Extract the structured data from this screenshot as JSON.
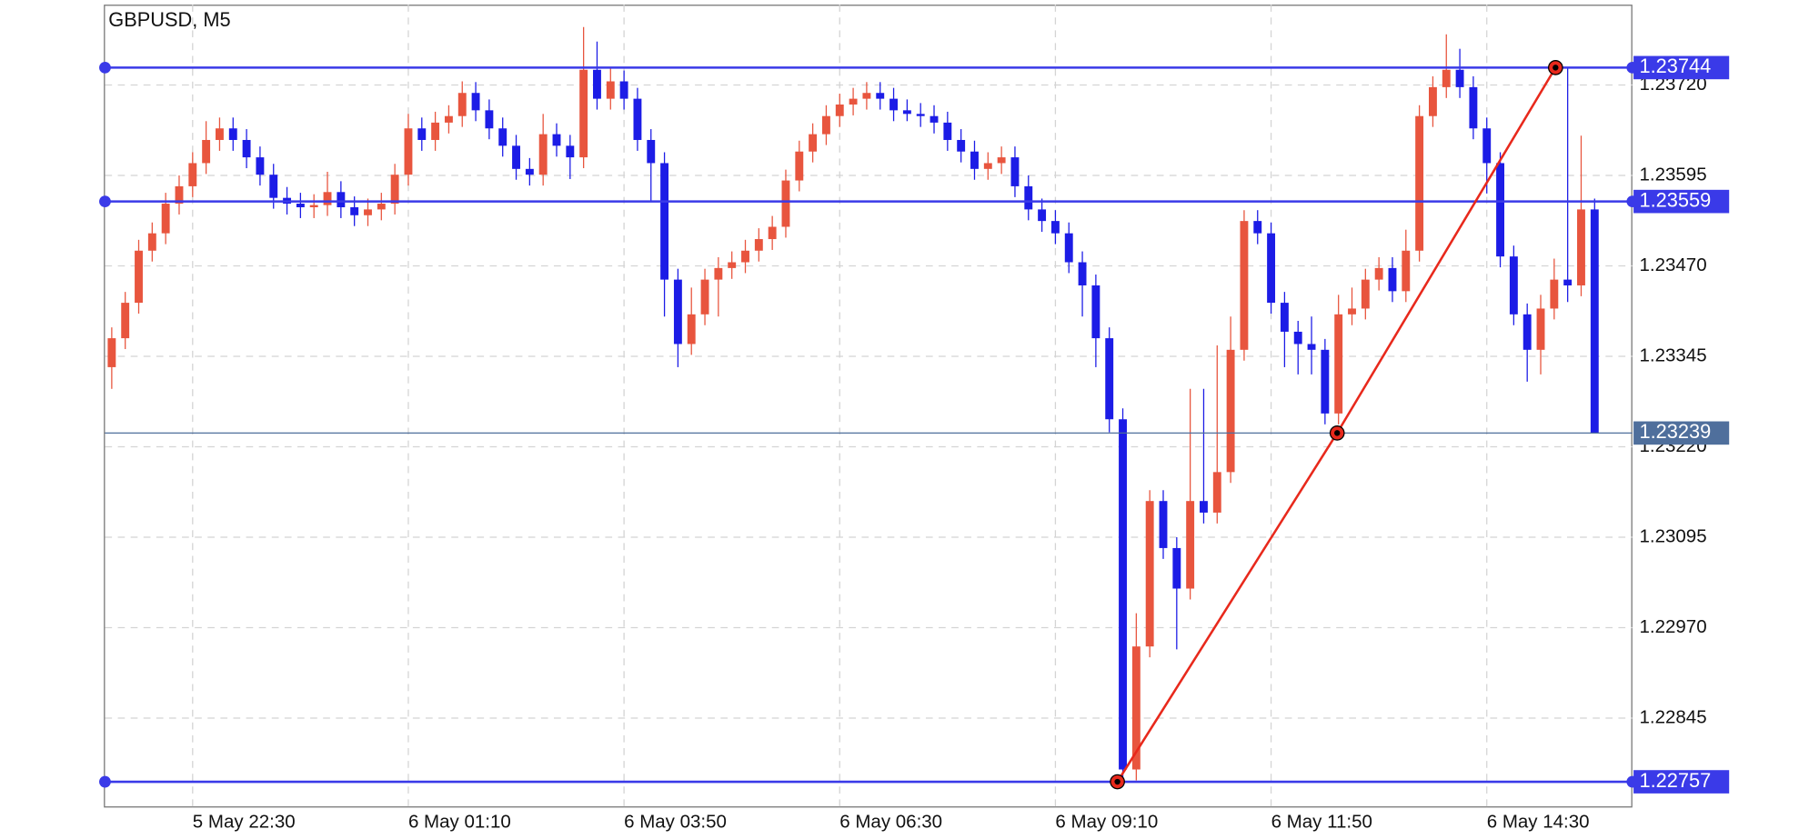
{
  "chart_data": {
    "type": "candlestick",
    "title": "GBPUSD, M5",
    "up_color": "#e8553e",
    "down_color": "#1c1ce6",
    "level_color": "#3a3ae8",
    "last_color": "#4f6f9c",
    "trend_color": "#e8291c",
    "ylim": [
      1.22723,
      1.23831
    ],
    "xlim": [
      -0.5,
      112.8
    ],
    "grid": true,
    "yticks": [
      {
        "value": 1.22845,
        "label": "1.22845"
      },
      {
        "value": 1.2297,
        "label": "1.22970"
      },
      {
        "value": 1.23095,
        "label": "1.23095"
      },
      {
        "value": 1.2322,
        "label": "1.23220"
      },
      {
        "value": 1.23345,
        "label": "1.23345"
      },
      {
        "value": 1.2347,
        "label": "1.23470"
      },
      {
        "value": 1.23595,
        "label": "1.23595"
      },
      {
        "value": 1.2372,
        "label": "1.23720"
      }
    ],
    "xticks": [
      {
        "value": 6,
        "label": "5 May 22:30"
      },
      {
        "value": 22,
        "label": "6 May 01:10"
      },
      {
        "value": 38,
        "label": "6 May 03:50"
      },
      {
        "value": 54,
        "label": "6 May 06:30"
      },
      {
        "value": 70,
        "label": "6 May 09:10"
      },
      {
        "value": 86,
        "label": "6 May 11:50"
      },
      {
        "value": 102,
        "label": "6 May 14:30"
      }
    ],
    "levels": [
      1.23744,
      1.23559,
      1.22757
    ],
    "last_price": 1.23239,
    "trendline": {
      "x": [
        74.6,
        90.9,
        107.1
      ],
      "y": [
        1.22757,
        1.23239,
        1.23744
      ]
    },
    "candles": [
      [
        1.2333,
        1.23385,
        1.233,
        1.2337
      ],
      [
        1.2337,
        1.23434,
        1.23355,
        1.23419
      ],
      [
        1.23419,
        1.23506,
        1.23404,
        1.23491
      ],
      [
        1.23491,
        1.2353,
        1.23476,
        1.23515
      ],
      [
        1.23515,
        1.23571,
        1.235,
        1.23556
      ],
      [
        1.23556,
        1.23595,
        1.23541,
        1.2358
      ],
      [
        1.2358,
        1.23627,
        1.23565,
        1.23612
      ],
      [
        1.23612,
        1.2367,
        1.23597,
        1.23644
      ],
      [
        1.23644,
        1.23675,
        1.23629,
        1.2366
      ],
      [
        1.2366,
        1.23675,
        1.23629,
        1.23644
      ],
      [
        1.23644,
        1.23659,
        1.23605,
        1.2362
      ],
      [
        1.2362,
        1.23635,
        1.23581,
        1.23596
      ],
      [
        1.23596,
        1.23611,
        1.23549,
        1.23564
      ],
      [
        1.23564,
        1.23579,
        1.23541,
        1.23556
      ],
      [
        1.23556,
        1.23571,
        1.23536,
        1.23551
      ],
      [
        1.23551,
        1.23569,
        1.23536,
        1.23554
      ],
      [
        1.23554,
        1.236,
        1.23539,
        1.23572
      ],
      [
        1.23572,
        1.23587,
        1.23536,
        1.23551
      ],
      [
        1.23551,
        1.23566,
        1.23525,
        1.2354
      ],
      [
        1.2354,
        1.23563,
        1.23525,
        1.23548
      ],
      [
        1.23548,
        1.23571,
        1.23533,
        1.23556
      ],
      [
        1.23556,
        1.23611,
        1.23541,
        1.23596
      ],
      [
        1.23596,
        1.2368,
        1.23581,
        1.2366
      ],
      [
        1.2366,
        1.23675,
        1.23629,
        1.23644
      ],
      [
        1.23644,
        1.23683,
        1.23629,
        1.23668
      ],
      [
        1.23668,
        1.23692,
        1.23653,
        1.23677
      ],
      [
        1.23677,
        1.23725,
        1.23662,
        1.23709
      ],
      [
        1.23709,
        1.23724,
        1.2367,
        1.23685
      ],
      [
        1.23685,
        1.237,
        1.23645,
        1.2366
      ],
      [
        1.2366,
        1.23675,
        1.23621,
        1.23636
      ],
      [
        1.23636,
        1.23651,
        1.23589,
        1.23604
      ],
      [
        1.23604,
        1.23619,
        1.23581,
        1.23596
      ],
      [
        1.23596,
        1.2368,
        1.23581,
        1.23652
      ],
      [
        1.23652,
        1.23667,
        1.23621,
        1.23636
      ],
      [
        1.23636,
        1.23651,
        1.2359,
        1.2362
      ],
      [
        1.2362,
        1.238,
        1.23605,
        1.23741
      ],
      [
        1.23741,
        1.2378,
        1.23686,
        1.23701
      ],
      [
        1.23701,
        1.23745,
        1.23686,
        1.23725
      ],
      [
        1.23725,
        1.2374,
        1.23686,
        1.23701
      ],
      [
        1.23701,
        1.23716,
        1.23629,
        1.23644
      ],
      [
        1.23644,
        1.23659,
        1.2356,
        1.23612
      ],
      [
        1.23612,
        1.23627,
        1.234,
        1.23451
      ],
      [
        1.23451,
        1.23466,
        1.2333,
        1.23362
      ],
      [
        1.23362,
        1.2344,
        1.23347,
        1.23403
      ],
      [
        1.23403,
        1.23466,
        1.23388,
        1.23451
      ],
      [
        1.23451,
        1.23482,
        1.234,
        1.23467
      ],
      [
        1.23467,
        1.2349,
        1.23452,
        1.23475
      ],
      [
        1.23475,
        1.23506,
        1.2346,
        1.23491
      ],
      [
        1.23491,
        1.23522,
        1.23476,
        1.23507
      ],
      [
        1.23507,
        1.23539,
        1.23492,
        1.23524
      ],
      [
        1.23524,
        1.23603,
        1.23509,
        1.23588
      ],
      [
        1.23588,
        1.23643,
        1.23573,
        1.23628
      ],
      [
        1.23628,
        1.23667,
        1.23613,
        1.23652
      ],
      [
        1.23652,
        1.23692,
        1.23637,
        1.23677
      ],
      [
        1.23677,
        1.23708,
        1.23662,
        1.23693
      ],
      [
        1.23693,
        1.23716,
        1.23678,
        1.23701
      ],
      [
        1.23701,
        1.23724,
        1.23686,
        1.23709
      ],
      [
        1.23709,
        1.23724,
        1.23686,
        1.23701
      ],
      [
        1.23701,
        1.23716,
        1.2367,
        1.23685
      ],
      [
        1.23685,
        1.237,
        1.2367,
        1.2368
      ],
      [
        1.2368,
        1.23695,
        1.23662,
        1.23677
      ],
      [
        1.23677,
        1.23692,
        1.23653,
        1.23668
      ],
      [
        1.23668,
        1.23683,
        1.23629,
        1.23644
      ],
      [
        1.23644,
        1.23659,
        1.23613,
        1.23628
      ],
      [
        1.23628,
        1.23643,
        1.23589,
        1.23604
      ],
      [
        1.23604,
        1.23627,
        1.23589,
        1.23612
      ],
      [
        1.23612,
        1.23635,
        1.23597,
        1.2362
      ],
      [
        1.2362,
        1.23635,
        1.23565,
        1.2358
      ],
      [
        1.2358,
        1.23595,
        1.23533,
        1.23548
      ],
      [
        1.23548,
        1.23563,
        1.23517,
        1.23532
      ],
      [
        1.23532,
        1.23547,
        1.235,
        1.23515
      ],
      [
        1.23515,
        1.2353,
        1.2346,
        1.23475
      ],
      [
        1.23475,
        1.2349,
        1.234,
        1.23443
      ],
      [
        1.23443,
        1.23458,
        1.2333,
        1.2337
      ],
      [
        1.2337,
        1.23385,
        1.2324,
        1.23258
      ],
      [
        1.23258,
        1.23273,
        1.22757,
        1.22774
      ],
      [
        1.22774,
        1.2299,
        1.22759,
        1.22944
      ],
      [
        1.22944,
        1.2316,
        1.22929,
        1.23145
      ],
      [
        1.23145,
        1.2316,
        1.23065,
        1.2308
      ],
      [
        1.2308,
        1.23095,
        1.2294,
        1.23024
      ],
      [
        1.23024,
        1.233,
        1.23009,
        1.23145
      ],
      [
        1.23145,
        1.233,
        1.23114,
        1.23129
      ],
      [
        1.23129,
        1.2336,
        1.23114,
        1.23185
      ],
      [
        1.23185,
        1.234,
        1.2317,
        1.23354
      ],
      [
        1.23354,
        1.23547,
        1.23339,
        1.23532
      ],
      [
        1.23532,
        1.23547,
        1.235,
        1.23515
      ],
      [
        1.23515,
        1.2353,
        1.23404,
        1.23419
      ],
      [
        1.23419,
        1.23434,
        1.2333,
        1.23379
      ],
      [
        1.23379,
        1.23394,
        1.2332,
        1.23362
      ],
      [
        1.23362,
        1.234,
        1.2332,
        1.23354
      ],
      [
        1.23354,
        1.23369,
        1.23251,
        1.23266
      ],
      [
        1.23266,
        1.2343,
        1.23251,
        1.23403
      ],
      [
        1.23403,
        1.2344,
        1.23388,
        1.23411
      ],
      [
        1.23411,
        1.23466,
        1.23396,
        1.23451
      ],
      [
        1.23451,
        1.23482,
        1.23436,
        1.23467
      ],
      [
        1.23467,
        1.23482,
        1.2342,
        1.23435
      ],
      [
        1.23435,
        1.2352,
        1.2342,
        1.23491
      ],
      [
        1.23491,
        1.23692,
        1.23476,
        1.23677
      ],
      [
        1.23677,
        1.23732,
        1.23662,
        1.23717
      ],
      [
        1.23717,
        1.2379,
        1.23702,
        1.23741
      ],
      [
        1.23741,
        1.2377,
        1.23702,
        1.23717
      ],
      [
        1.23717,
        1.23732,
        1.23645,
        1.2366
      ],
      [
        1.2366,
        1.23675,
        1.2357,
        1.23612
      ],
      [
        1.23612,
        1.23627,
        1.23468,
        1.23483
      ],
      [
        1.23483,
        1.23498,
        1.23388,
        1.23403
      ],
      [
        1.23403,
        1.23418,
        1.2331,
        1.23354
      ],
      [
        1.23354,
        1.2343,
        1.2332,
        1.23411
      ],
      [
        1.23411,
        1.2348,
        1.23396,
        1.23451
      ],
      [
        1.23451,
        1.23744,
        1.2342,
        1.23443
      ],
      [
        1.23443,
        1.2365,
        1.23428,
        1.23548
      ],
      [
        1.23548,
        1.23563,
        1.23239,
        1.23239
      ]
    ]
  }
}
